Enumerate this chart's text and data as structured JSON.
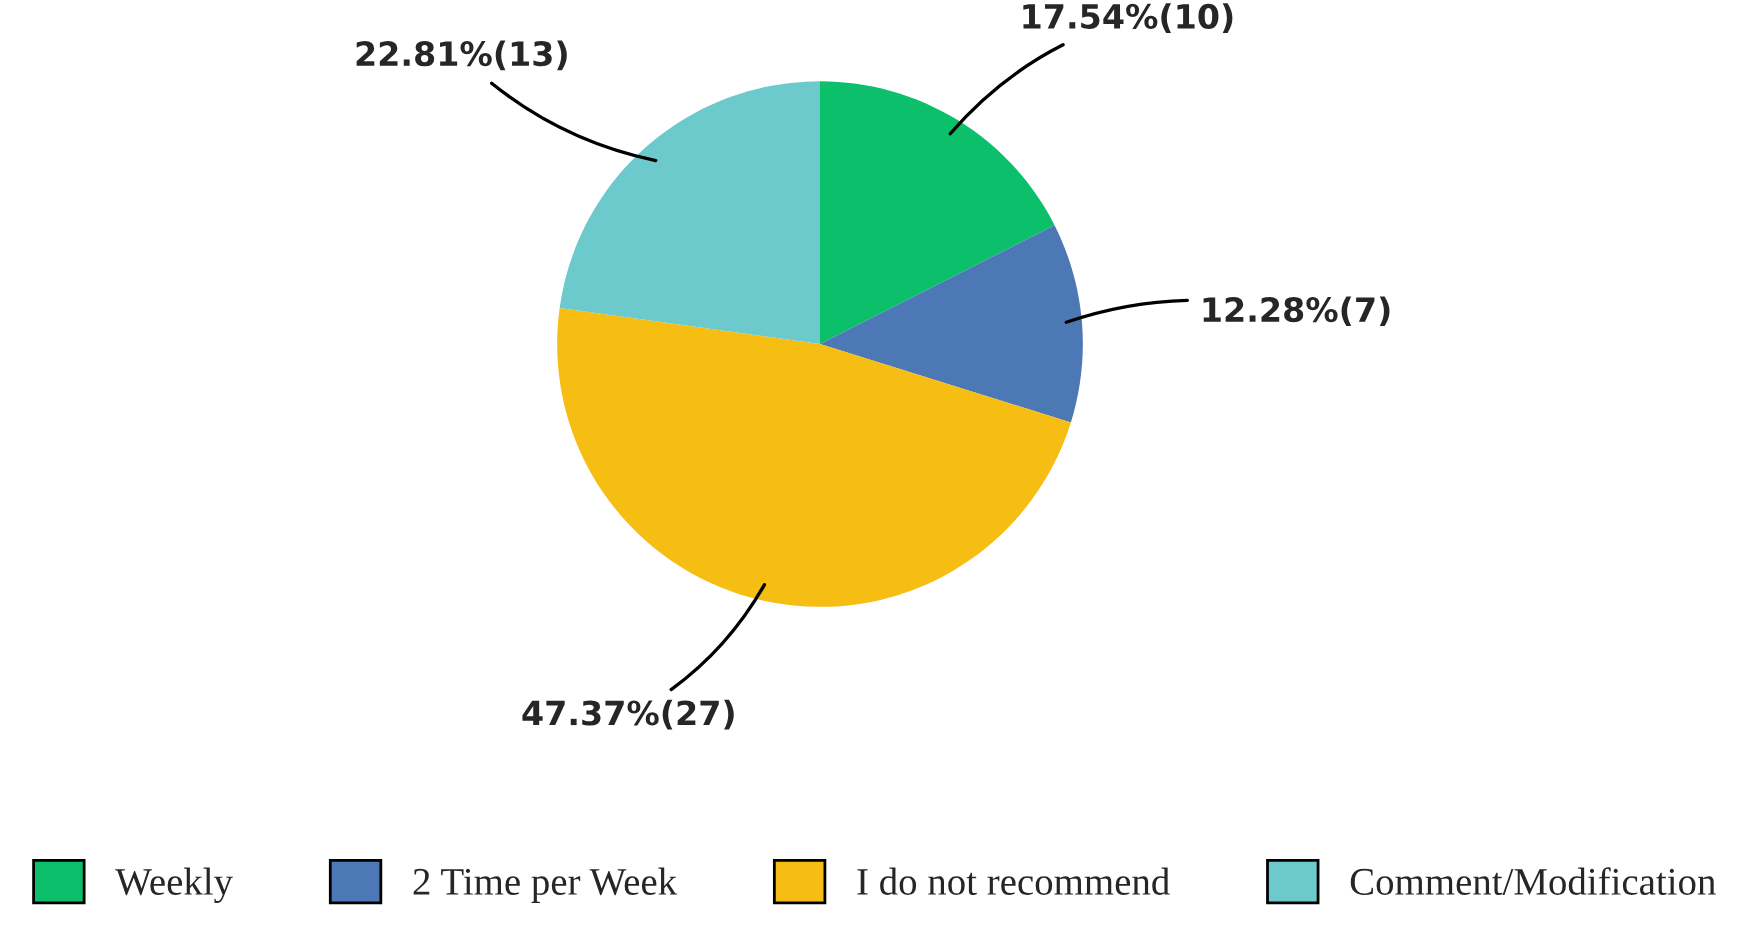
{
  "chart_data": {
    "type": "pie",
    "categories": [
      "Weekly",
      "2 Time per Week",
      "I do not recommend",
      "Comment/Modification"
    ],
    "values": [
      10,
      7,
      27,
      13
    ],
    "value_labels": [
      "17.54%(10)",
      "12.28%(7)",
      "47.37%(27)",
      "22.81%(13)"
    ],
    "colors": [
      "#0bbf6b",
      "#4d78b6",
      "#f6bd13",
      "#6cc9cc"
    ],
    "legend": "bottom"
  }
}
